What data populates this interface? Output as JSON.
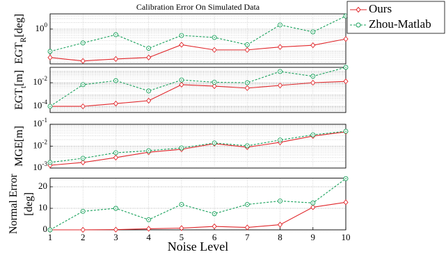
{
  "chart_data": [
    {
      "type": "line",
      "title": "Calibration Error On Simulated Data",
      "ylabel": "EGT_{R}[deg]",
      "log_scale": true,
      "x": [
        1,
        2,
        3,
        4,
        5,
        6,
        7,
        8,
        9,
        10
      ],
      "xlim": [
        1,
        10
      ],
      "ylim": [
        0.025,
        5
      ],
      "yticks": [
        {
          "value": 1,
          "label": "10^{0}"
        }
      ],
      "grid": true,
      "legend": "upper right",
      "series": [
        {
          "name": "Ours",
          "color": "#e0262a",
          "values": [
            0.049,
            0.034,
            0.042,
            0.049,
            0.19,
            0.11,
            0.11,
            0.15,
            0.18,
            0.35
          ]
        },
        {
          "name": "Zhou-Matlab",
          "color": "#17a05a",
          "values": [
            0.094,
            0.23,
            0.55,
            0.13,
            0.51,
            0.41,
            0.19,
            1.55,
            0.74,
            4.0
          ]
        }
      ]
    },
    {
      "type": "line",
      "ylabel": "EGT_{t}[m]",
      "log_scale": true,
      "x": [
        1,
        2,
        3,
        4,
        5,
        6,
        7,
        8,
        9,
        10
      ],
      "xlim": [
        1,
        10
      ],
      "ylim": [
        3e-05,
        0.2
      ],
      "yticks": [
        {
          "value": 0.0001,
          "label": "10^{-4}"
        },
        {
          "value": 0.01,
          "label": "10^{-2}"
        }
      ],
      "grid": true,
      "series": [
        {
          "color": "#e0262a",
          "values": [
            0.0001,
            0.0001,
            0.00017,
            0.0003,
            0.0068,
            0.0051,
            0.0035,
            0.0059,
            0.01,
            0.013
          ]
        },
        {
          "color": "#17a05a",
          "values": [
            0.0001,
            0.0068,
            0.015,
            0.002,
            0.017,
            0.011,
            0.01,
            0.089,
            0.035,
            0.2
          ]
        }
      ]
    },
    {
      "type": "line",
      "ylabel": "MGE[m]",
      "log_scale": true,
      "x": [
        1,
        2,
        3,
        4,
        5,
        6,
        7,
        8,
        9,
        10
      ],
      "xlim": [
        1,
        10
      ],
      "ylim": [
        0.001,
        0.1
      ],
      "yticks": [
        {
          "value": 0.001,
          "label": "10^{-3}"
        },
        {
          "value": 0.01,
          "label": "10^{-2}"
        },
        {
          "value": 0.1,
          "label": "10^{-1}"
        }
      ],
      "grid": true,
      "series": [
        {
          "color": "#e0262a",
          "values": [
            0.00134,
            0.0018,
            0.003,
            0.0053,
            0.0072,
            0.013,
            0.009,
            0.015,
            0.029,
            0.045
          ]
        },
        {
          "color": "#17a05a",
          "values": [
            0.0018,
            0.0028,
            0.005,
            0.0062,
            0.0083,
            0.014,
            0.0104,
            0.019,
            0.033,
            0.048
          ]
        }
      ]
    },
    {
      "type": "line",
      "ylabel": [
        "Normal Error",
        "[deg]"
      ],
      "xlabel": "Noise Level",
      "log_scale": false,
      "x": [
        1,
        2,
        3,
        4,
        5,
        6,
        7,
        8,
        9,
        10
      ],
      "xlim": [
        1,
        10
      ],
      "xticks": [
        1,
        2,
        3,
        4,
        5,
        6,
        7,
        8,
        9,
        10
      ],
      "ylim": [
        0,
        24
      ],
      "yticks": [
        0,
        10,
        20
      ],
      "grid": true,
      "series": [
        {
          "color": "#e0262a",
          "values": [
            0,
            0,
            0.1,
            0.5,
            0.8,
            1.6,
            1.1,
            2.4,
            10.5,
            12.8
          ]
        },
        {
          "color": "#17a05a",
          "values": [
            0,
            8.6,
            10,
            4.7,
            11.8,
            7.5,
            11.8,
            13.4,
            12.5,
            23.8
          ]
        }
      ]
    }
  ]
}
